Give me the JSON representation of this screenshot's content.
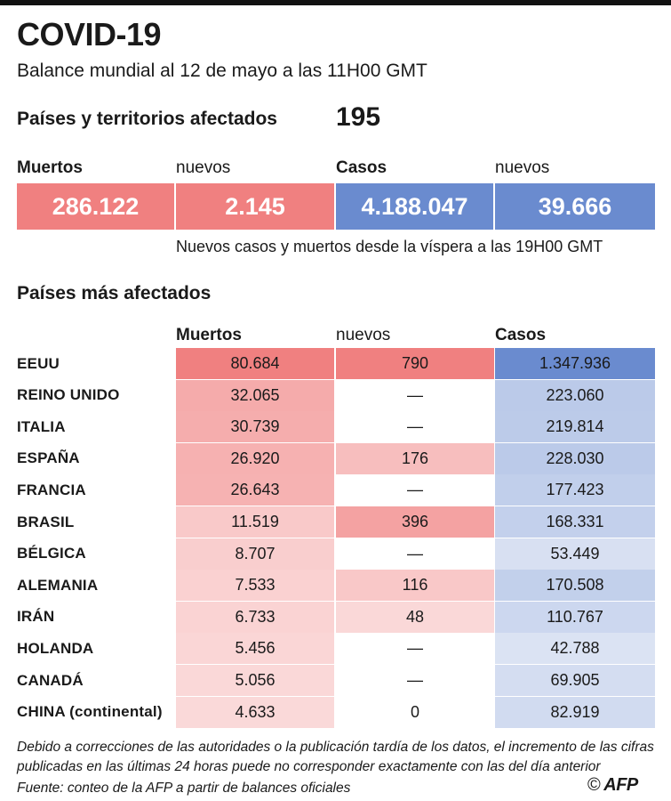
{
  "header": {
    "title": "COVID-19",
    "subtitle": "Balance mundial al 12 de mayo a las 11H00 GMT",
    "affected_label": "Países y territorios afectados",
    "affected_value": "195"
  },
  "summary": {
    "labels": {
      "dead": "Muertos",
      "new_dead": "nuevos",
      "cases": "Casos",
      "new_cases": "nuevos"
    },
    "values": {
      "dead": "286.122",
      "new_dead": "2.145",
      "cases": "4.188.047",
      "new_cases": "39.666"
    },
    "note": "Nuevos casos y muertos desde la víspera a las 19H00 GMT",
    "colors": {
      "dead": "#f08080",
      "cases": "#6a8bcf"
    }
  },
  "section_title": "Países más afectados",
  "table_headers": {
    "dead": "Muertos",
    "new": "nuevos",
    "cases": "Casos"
  },
  "chart_data": {
    "type": "table",
    "title": "Países más afectados",
    "columns": [
      "Muertos",
      "nuevos",
      "Casos"
    ],
    "rows": [
      {
        "country": "EEUU",
        "dead": 80684,
        "new": 790,
        "cases": 1347936,
        "dead_s": "80.684",
        "new_s": "790",
        "cases_s": "1.347.936"
      },
      {
        "country": "REINO UNIDO",
        "dead": 32065,
        "new": null,
        "cases": 223060,
        "dead_s": "32.065",
        "new_s": "—",
        "cases_s": "223.060"
      },
      {
        "country": "ITALIA",
        "dead": 30739,
        "new": null,
        "cases": 219814,
        "dead_s": "30.739",
        "new_s": "—",
        "cases_s": "219.814"
      },
      {
        "country": "ESPAÑA",
        "dead": 26920,
        "new": 176,
        "cases": 228030,
        "dead_s": "26.920",
        "new_s": "176",
        "cases_s": "228.030"
      },
      {
        "country": "FRANCIA",
        "dead": 26643,
        "new": null,
        "cases": 177423,
        "dead_s": "26.643",
        "new_s": "—",
        "cases_s": "177.423"
      },
      {
        "country": "BRASIL",
        "dead": 11519,
        "new": 396,
        "cases": 168331,
        "dead_s": "11.519",
        "new_s": "396",
        "cases_s": "168.331"
      },
      {
        "country": "BÉLGICA",
        "dead": 8707,
        "new": null,
        "cases": 53449,
        "dead_s": "8.707",
        "new_s": "—",
        "cases_s": "53.449"
      },
      {
        "country": "ALEMANIA",
        "dead": 7533,
        "new": 116,
        "cases": 170508,
        "dead_s": "7.533",
        "new_s": "116",
        "cases_s": "170.508"
      },
      {
        "country": "IRÁN",
        "dead": 6733,
        "new": 48,
        "cases": 110767,
        "dead_s": "6.733",
        "new_s": "48",
        "cases_s": "110.767"
      },
      {
        "country": "HOLANDA",
        "dead": 5456,
        "new": null,
        "cases": 42788,
        "dead_s": "5.456",
        "new_s": "—",
        "cases_s": "42.788"
      },
      {
        "country": "CANADÁ",
        "dead": 5056,
        "new": null,
        "cases": 69905,
        "dead_s": "5.056",
        "new_s": "—",
        "cases_s": "69.905"
      },
      {
        "country": "CHINA (continental)",
        "dead": 4633,
        "new": 0,
        "cases": 82919,
        "dead_s": "4.633",
        "new_s": "0",
        "cases_s": "82.919"
      }
    ],
    "colors": {
      "dead": "#f08080",
      "cases": "#6a8bcf"
    }
  },
  "footer": {
    "note": "Debido a correcciones de las autoridades o la publicación tardía de los datos, el incremento de las cifras publicadas en las últimas 24 horas puede no corresponder exactamente con las del día anterior",
    "source": "Fuente: conteo de la AFP a partir de balances oficiales",
    "credit": "AFP"
  }
}
